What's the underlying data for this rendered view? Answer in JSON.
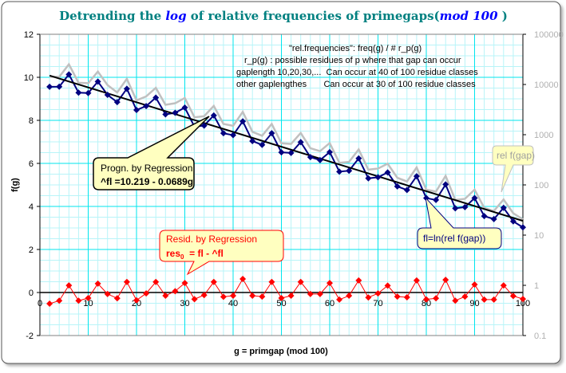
{
  "chart_data": {
    "type": "line",
    "title": {
      "part1": "Detrending the ",
      "log": "log",
      "part2": " of relative frequencies of primegaps(",
      "mod": "mod 100",
      "part3": " )"
    },
    "xlabel": "g = primgap (mod 100)",
    "ylabel": "f(g)",
    "xlim": [
      0,
      100
    ],
    "ylim": [
      -2,
      12
    ],
    "y2lim": [
      0.1,
      100000
    ],
    "y2scale": "log",
    "grid": true,
    "x_ticks": [
      "0",
      "10",
      "20",
      "30",
      "40",
      "50",
      "60",
      "70",
      "80",
      "90",
      "100"
    ],
    "y_ticks": [
      "-2",
      "0",
      "2",
      "4",
      "6",
      "8",
      "10",
      "12"
    ],
    "y2_ticks": [
      "0.1",
      "1",
      "10",
      "100",
      "1000",
      "10000",
      "100000"
    ],
    "colors": {
      "fl": "#000080",
      "rel_f": "#c0c0c0",
      "residual": "#ff0000",
      "regression": "#000000",
      "grid_major": "#00e5ee",
      "grid_minor": "#b8f4f8",
      "title": "#008080",
      "title_italic": "#0000ff"
    },
    "regression": {
      "intercept": 10.219,
      "slope": -0.0689,
      "label_line1": "Progn. by Regression",
      "label_line2": "^fl =10.219 - 0.0689g"
    },
    "g": [
      2,
      4,
      6,
      8,
      10,
      12,
      14,
      16,
      18,
      20,
      22,
      24,
      26,
      28,
      30,
      32,
      34,
      36,
      38,
      40,
      42,
      44,
      46,
      48,
      50,
      52,
      54,
      56,
      58,
      60,
      62,
      64,
      66,
      68,
      70,
      72,
      74,
      76,
      78,
      80,
      82,
      84,
      86,
      88,
      90,
      92,
      94,
      96,
      98,
      100
    ],
    "residual": [
      -0.52,
      -0.38,
      0.33,
      -0.38,
      -0.26,
      0.41,
      -0.07,
      -0.27,
      0.49,
      -0.36,
      -0.04,
      0.49,
      -0.15,
      0.06,
      0.44,
      -0.31,
      -0.12,
      0.49,
      -0.2,
      -0.15,
      0.63,
      -0.15,
      -0.19,
      0.49,
      -0.26,
      -0.15,
      0.49,
      -0.07,
      -0.07,
      0.44,
      -0.33,
      -0.15,
      0.56,
      -0.23,
      -0.04,
      0.32,
      -0.19,
      -0.22,
      0.56,
      -0.32,
      -0.27,
      0.59,
      -0.38,
      -0.19,
      0.37,
      -0.33,
      -0.33,
      0.33,
      -0.16,
      -0.3
    ],
    "series": [
      {
        "name": "fl=ln(rel f(gap))",
        "axis": "left"
      },
      {
        "name": "rel f(gap)",
        "axis": "right"
      },
      {
        "name": "res",
        "axis": "left"
      }
    ],
    "annotations": {
      "resid_line1": "Resid. by Regression",
      "resid_line2_a": "res",
      "resid_line2_sub": "0",
      "resid_line2_b": "  = fl - ^fl",
      "fl_label": "fl=ln(rel f(gap))",
      "relf_label": "rel f(gap)",
      "notes": [
        "\"rel.frequencies\":  freq(g) / # r_p(g)",
        "r_p(g) : possible residues of p where that gap can occur",
        "gaplength 10,20,30,...  Can occur at 40 of 100 residue classes",
        "other gaplengthes       Can occur at 30 of 100 residue classes"
      ]
    }
  }
}
